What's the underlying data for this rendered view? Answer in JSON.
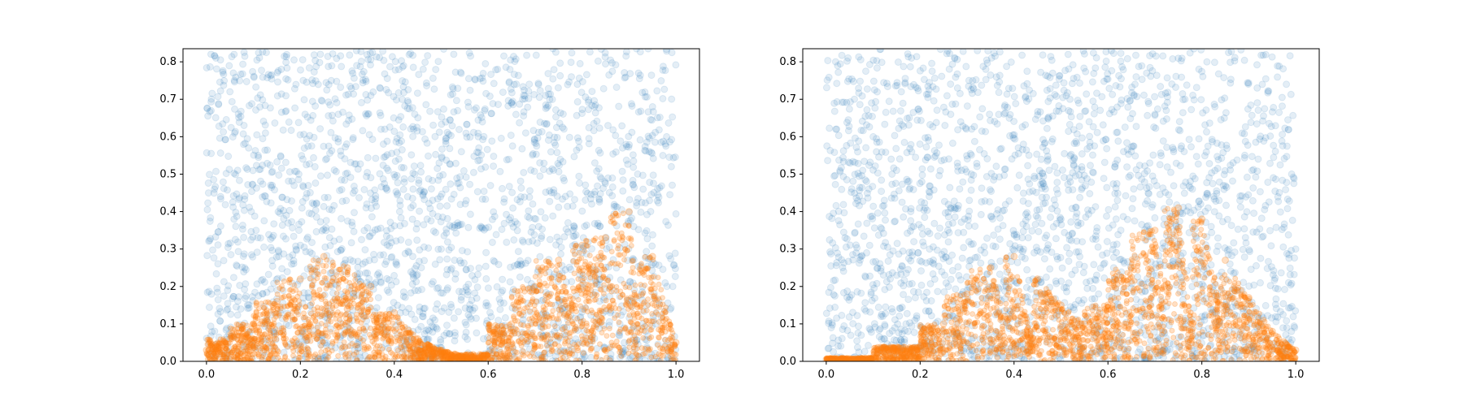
{
  "colors": {
    "uniform_points": "#1f77b4",
    "density_points": "#ff7f0e",
    "axes": "#000000",
    "background": "#ffffff"
  },
  "chart_data": [
    {
      "type": "scatter",
      "title": "",
      "xlabel": "",
      "ylabel": "",
      "xlim": [
        -0.05,
        1.05
      ],
      "ylim": [
        0,
        0.835
      ],
      "xticks": [
        "0.0",
        "0.2",
        "0.4",
        "0.6",
        "0.8",
        "1.0"
      ],
      "yticks": [
        "0.0",
        "0.1",
        "0.2",
        "0.3",
        "0.4",
        "0.5",
        "0.6",
        "0.7",
        "0.8"
      ],
      "grid": false,
      "legend": "none",
      "series": [
        {
          "color": "#1f77b4",
          "alpha": 0.12,
          "description_x_range": [
            0.0,
            1.0
          ],
          "points": [
            [
              0.02,
              0.81
            ],
            [
              0.05,
              0.72
            ],
            [
              0.08,
              0.63
            ],
            [
              0.11,
              0.55
            ],
            [
              0.14,
              0.47
            ],
            [
              0.17,
              0.39
            ],
            [
              0.2,
              0.31
            ],
            [
              0.23,
              0.23
            ],
            [
              0.26,
              0.15
            ],
            [
              0.29,
              0.07
            ],
            [
              0.32,
              0.79
            ],
            [
              0.35,
              0.71
            ],
            [
              0.38,
              0.62
            ],
            [
              0.41,
              0.54
            ],
            [
              0.44,
              0.46
            ],
            [
              0.47,
              0.38
            ],
            [
              0.5,
              0.3
            ],
            [
              0.53,
              0.22
            ],
            [
              0.56,
              0.14
            ],
            [
              0.59,
              0.06
            ],
            [
              0.62,
              0.78
            ],
            [
              0.65,
              0.69
            ],
            [
              0.68,
              0.61
            ],
            [
              0.71,
              0.53
            ],
            [
              0.74,
              0.45
            ],
            [
              0.77,
              0.37
            ],
            [
              0.8,
              0.29
            ],
            [
              0.83,
              0.21
            ],
            [
              0.86,
              0.13
            ],
            [
              0.89,
              0.05
            ],
            [
              0.92,
              0.77
            ],
            [
              0.95,
              0.68
            ],
            [
              0.98,
              0.6
            ],
            [
              0.03,
              0.44
            ],
            [
              0.12,
              0.18
            ],
            [
              0.21,
              0.66
            ],
            [
              0.34,
              0.41
            ],
            [
              0.46,
              0.12
            ],
            [
              0.58,
              0.57
            ],
            [
              0.67,
              0.26
            ],
            [
              0.79,
              0.74
            ],
            [
              0.91,
              0.36
            ],
            [
              0.99,
              0.52
            ]
          ]
        },
        {
          "color": "#ff7f0e",
          "alpha": 0.25,
          "points": [
            [
              0.0,
              0.03
            ],
            [
              0.05,
              0.06
            ],
            [
              0.1,
              0.1
            ],
            [
              0.15,
              0.16
            ],
            [
              0.2,
              0.22
            ],
            [
              0.25,
              0.28
            ],
            [
              0.3,
              0.25
            ],
            [
              0.35,
              0.2
            ],
            [
              0.4,
              0.13
            ],
            [
              0.45,
              0.06
            ],
            [
              0.5,
              0.03
            ],
            [
              0.55,
              0.015
            ],
            [
              0.6,
              0.02
            ],
            [
              0.65,
              0.1
            ],
            [
              0.7,
              0.2
            ],
            [
              0.75,
              0.27
            ],
            [
              0.8,
              0.31
            ],
            [
              0.85,
              0.33
            ],
            [
              0.9,
              0.4
            ],
            [
              0.95,
              0.28
            ],
            [
              1.0,
              0.05
            ],
            [
              0.22,
              0.1
            ],
            [
              0.3,
              0.14
            ],
            [
              0.36,
              0.08
            ],
            [
              0.78,
              0.15
            ],
            [
              0.86,
              0.2
            ],
            [
              0.92,
              0.12
            ]
          ]
        }
      ]
    },
    {
      "type": "scatter",
      "title": "",
      "xlabel": "",
      "ylabel": "",
      "xlim": [
        -0.05,
        1.05
      ],
      "ylim": [
        0,
        0.835
      ],
      "xticks": [
        "0.0",
        "0.2",
        "0.4",
        "0.6",
        "0.8",
        "1.0"
      ],
      "yticks": [
        "0.0",
        "0.1",
        "0.2",
        "0.3",
        "0.4",
        "0.5",
        "0.6",
        "0.7",
        "0.8"
      ],
      "grid": false,
      "legend": "none",
      "series": [
        {
          "color": "#1f77b4",
          "alpha": 0.12,
          "points": [
            [
              0.02,
              0.8
            ],
            [
              0.06,
              0.7
            ],
            [
              0.1,
              0.6
            ],
            [
              0.14,
              0.5
            ],
            [
              0.18,
              0.4
            ],
            [
              0.22,
              0.3
            ],
            [
              0.26,
              0.2
            ],
            [
              0.3,
              0.1
            ],
            [
              0.34,
              0.78
            ],
            [
              0.38,
              0.68
            ],
            [
              0.42,
              0.58
            ],
            [
              0.46,
              0.48
            ],
            [
              0.5,
              0.38
            ],
            [
              0.54,
              0.28
            ],
            [
              0.58,
              0.18
            ],
            [
              0.62,
              0.08
            ],
            [
              0.66,
              0.76
            ],
            [
              0.7,
              0.66
            ],
            [
              0.74,
              0.56
            ],
            [
              0.78,
              0.46
            ],
            [
              0.82,
              0.36
            ],
            [
              0.86,
              0.26
            ],
            [
              0.9,
              0.16
            ],
            [
              0.94,
              0.06
            ],
            [
              0.98,
              0.74
            ],
            [
              0.04,
              0.33
            ],
            [
              0.16,
              0.72
            ],
            [
              0.28,
              0.52
            ],
            [
              0.44,
              0.22
            ],
            [
              0.56,
              0.64
            ],
            [
              0.68,
              0.42
            ],
            [
              0.8,
              0.12
            ],
            [
              0.92,
              0.54
            ],
            [
              1.0,
              0.3
            ]
          ]
        },
        {
          "color": "#ff7f0e",
          "alpha": 0.25,
          "points": [
            [
              0.0,
              0.005
            ],
            [
              0.1,
              0.01
            ],
            [
              0.2,
              0.04
            ],
            [
              0.25,
              0.1
            ],
            [
              0.3,
              0.18
            ],
            [
              0.35,
              0.25
            ],
            [
              0.4,
              0.28
            ],
            [
              0.45,
              0.22
            ],
            [
              0.5,
              0.15
            ],
            [
              0.55,
              0.1
            ],
            [
              0.6,
              0.15
            ],
            [
              0.65,
              0.25
            ],
            [
              0.7,
              0.35
            ],
            [
              0.75,
              0.41
            ],
            [
              0.8,
              0.38
            ],
            [
              0.85,
              0.27
            ],
            [
              0.9,
              0.17
            ],
            [
              0.95,
              0.08
            ],
            [
              1.0,
              0.03
            ],
            [
              0.38,
              0.12
            ],
            [
              0.44,
              0.06
            ],
            [
              0.72,
              0.2
            ],
            [
              0.78,
              0.1
            ],
            [
              0.84,
              0.15
            ]
          ]
        }
      ]
    }
  ]
}
